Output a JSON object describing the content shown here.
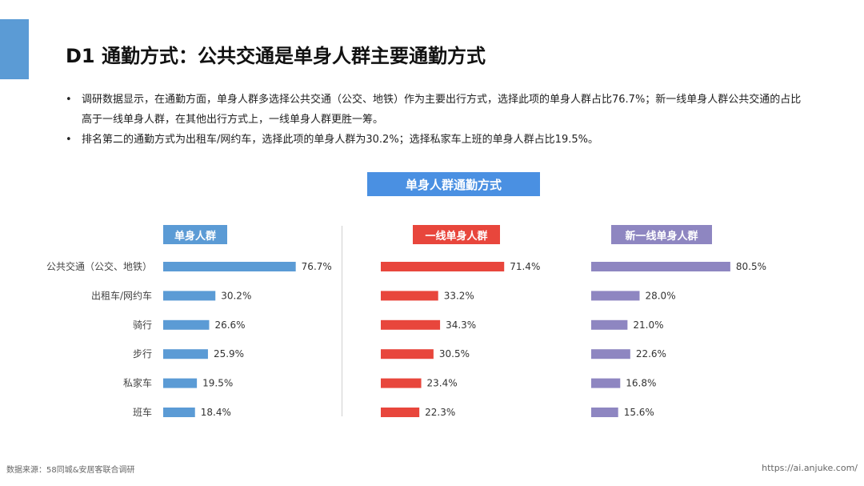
{
  "page": {
    "title": "D1 通勤方式：公共交通是单身人群主要通勤方式",
    "bullets": [
      "调研数据显示，在通勤方面，单身人群多选择公共交通（公交、地铁）作为主要出行方式，选择此项的单身人群占比76.7%；新一线单身人群公共交通的占比高于一线单身人群，在其他出行方式上，一线单身人群更胜一筹。",
      "排名第二的通勤方式为出租车/网约车，选择此项的单身人群为30.2%；选择私家车上班的单身人群占比19.5%。"
    ],
    "bullet_symbol": "•",
    "source": "数据来源：58同城&安居客联合调研",
    "url": "https://ai.anjuke.com/"
  },
  "colors": {
    "accent": "#5b9bd5",
    "all": "#5b9bd5",
    "tier1": "#e8463c",
    "new_tier1": "#8e86c1",
    "chart_title_bg": "#4a90e2"
  },
  "chart_data": {
    "type": "bar",
    "orientation": "horizontal",
    "title": "单身人群通勤方式",
    "categories": [
      "公共交通（公交、地铁）",
      "出租车/网约车",
      "骑行",
      "步行",
      "私家车",
      "班车"
    ],
    "series": [
      {
        "name": "单身人群",
        "values": [
          76.7,
          30.2,
          26.6,
          25.9,
          19.5,
          18.4
        ],
        "labels": [
          "76.7%",
          "30.2%",
          "26.6%",
          "25.9%",
          "19.5%",
          "18.4%"
        ]
      },
      {
        "name": "一线单身人群",
        "values": [
          71.4,
          33.2,
          34.3,
          30.5,
          23.4,
          22.3
        ],
        "labels": [
          "71.4%",
          "33.2%",
          "34.3%",
          "30.5%",
          "23.4%",
          "22.3%"
        ]
      },
      {
        "name": "新一线单身人群",
        "values": [
          80.5,
          28.0,
          21.0,
          22.6,
          16.8,
          15.6
        ],
        "labels": [
          "80.5%",
          "28.0%",
          "21.0%",
          "22.6%",
          "16.8%",
          "15.6%"
        ]
      }
    ],
    "unit": "%",
    "grid": false
  }
}
